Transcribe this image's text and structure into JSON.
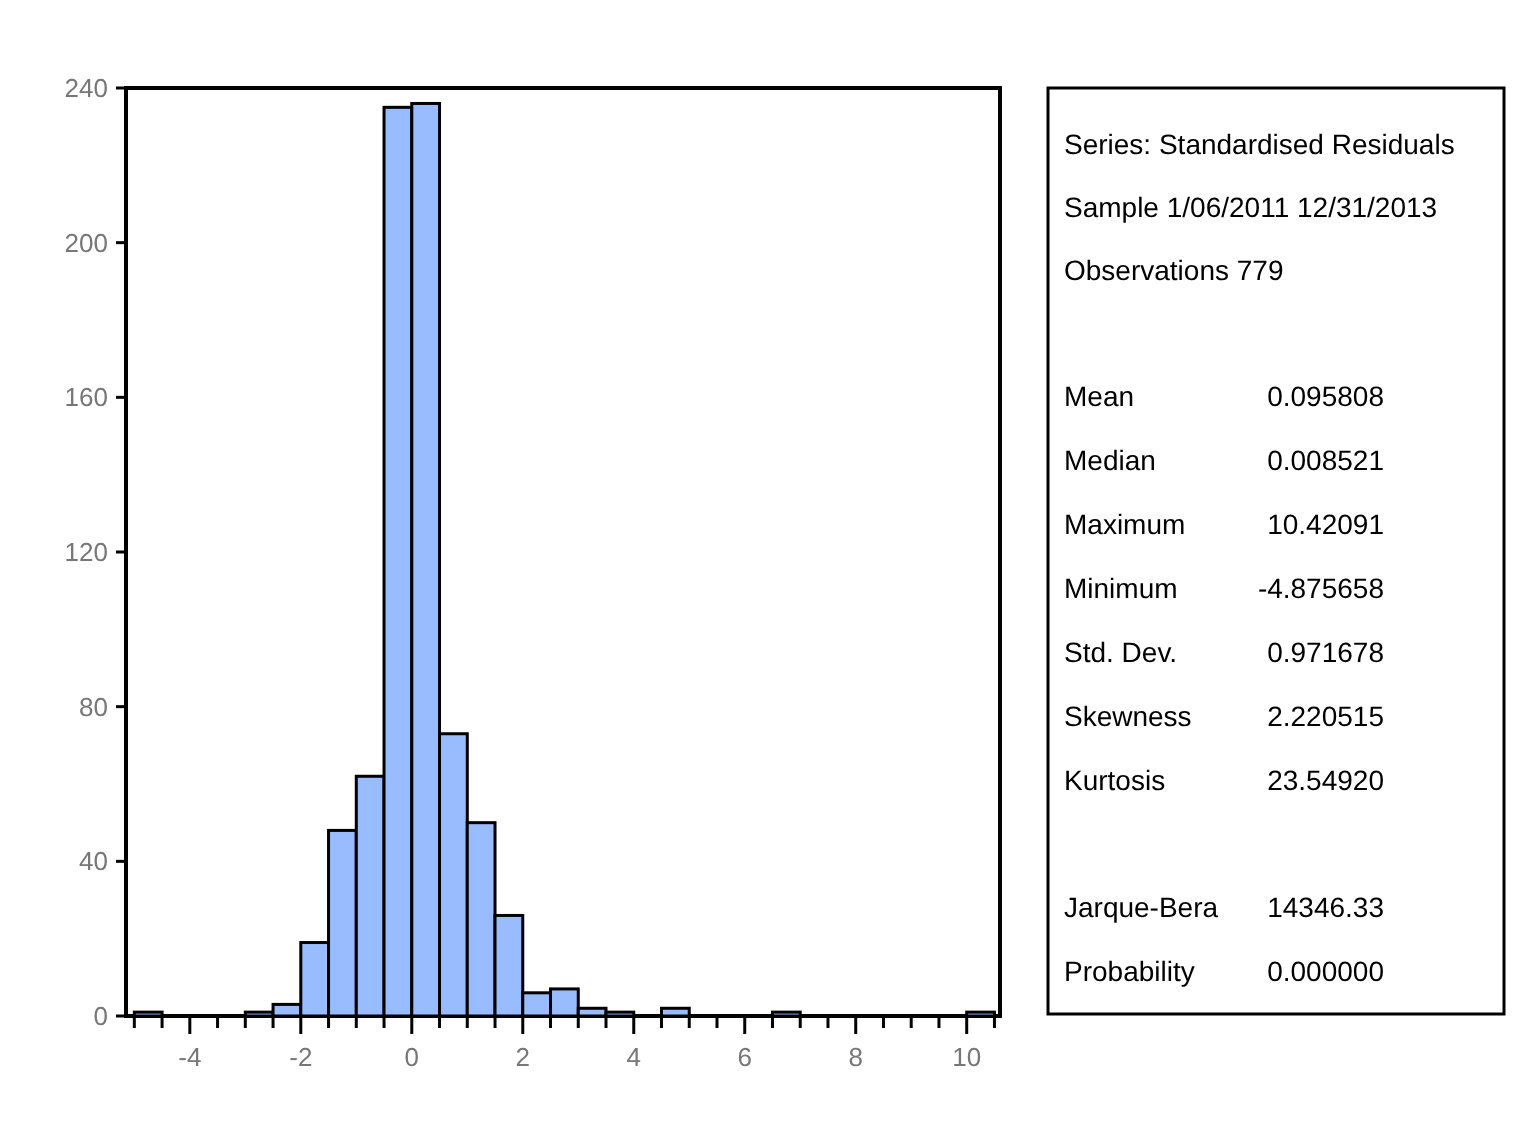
{
  "chart_data": {
    "type": "histogram",
    "bins": [
      -5,
      -4.5,
      -4,
      -3.5,
      -3,
      -2.5,
      -2,
      -1.5,
      -1,
      -0.5,
      0,
      0.5,
      1,
      1.5,
      2,
      2.5,
      3,
      3.5,
      4,
      4.5,
      5,
      5.5,
      6,
      6.5,
      7,
      7.5,
      8,
      8.5,
      9,
      9.5,
      10,
      10.5
    ],
    "values": [
      1,
      0,
      0,
      0,
      1,
      3,
      19,
      48,
      62,
      235,
      236,
      73,
      50,
      26,
      6,
      7,
      2,
      1,
      0,
      2,
      0,
      0,
      0,
      1,
      0,
      0,
      0,
      0,
      0,
      0,
      1
    ],
    "color": "#99bbff",
    "xlim": [
      -5.15,
      10.6
    ],
    "xticks": [
      {
        "value": -5,
        "label": null
      },
      {
        "value": -4.5,
        "label": null
      },
      -4,
      {
        "value": -3.5,
        "label": null
      },
      {
        "value": -3,
        "label": null
      },
      {
        "value": -2.5,
        "label": null
      },
      -2,
      {
        "value": -1.5,
        "label": null
      },
      {
        "value": -1,
        "label": null
      },
      {
        "value": -0.5,
        "label": null
      },
      0,
      {
        "value": 0.5,
        "label": null
      },
      {
        "value": 1,
        "label": null
      },
      {
        "value": 1.5,
        "label": null
      },
      2,
      {
        "value": 2.5,
        "label": null
      },
      {
        "value": 3,
        "label": null
      },
      {
        "value": 3.5,
        "label": null
      },
      4,
      {
        "value": 4.5,
        "label": null
      },
      {
        "value": 5,
        "label": null
      },
      {
        "value": 5.5,
        "label": null
      },
      6,
      {
        "value": 6.5,
        "label": null
      },
      {
        "value": 7,
        "label": null
      },
      {
        "value": 7.5,
        "label": null
      },
      8,
      {
        "value": 8.5,
        "label": null
      },
      {
        "value": 9,
        "label": null
      },
      {
        "value": 9.5,
        "label": null
      },
      10,
      {
        "value": 10.5,
        "label": null
      }
    ],
    "ylim": [
      0,
      240
    ],
    "yticks": [
      0,
      40,
      80,
      120,
      160,
      200,
      240
    ],
    "grid": false,
    "annotations": [
      "Series: Standardised Residuals",
      "Sample 1/06/2011 12/31/2013",
      "Observations 779",
      "Mean",
      "0.095808",
      "Median",
      "0.008521",
      "Maximum",
      "10.42091",
      "Minimum",
      "-4.875658",
      "Std. Dev.",
      "0.971678",
      "Skewness",
      "2.220515",
      "Kurtosis",
      "23.54920",
      "Jarque-Bera",
      "14346.33",
      "Probability",
      "0.000000"
    ]
  }
}
